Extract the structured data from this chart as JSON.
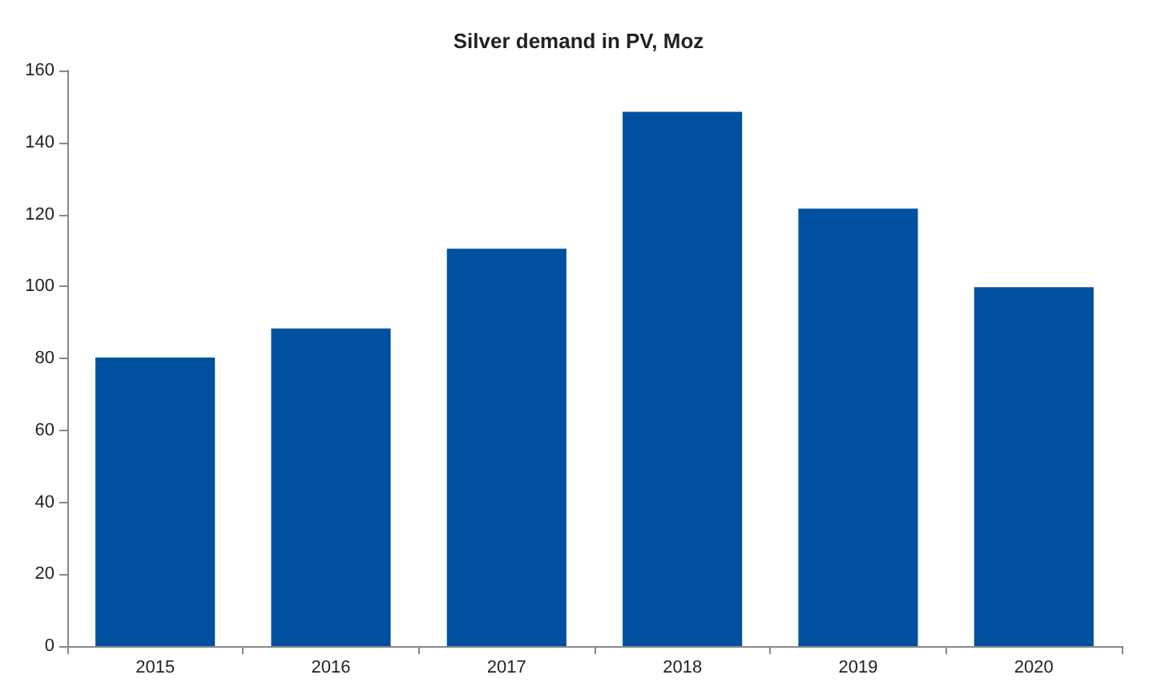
{
  "chart_data": {
    "type": "bar",
    "title": "Silver demand in PV, Moz",
    "categories": [
      "2015",
      "2016",
      "2017",
      "2018",
      "2019",
      "2020"
    ],
    "values": [
      80.2,
      88.3,
      110.5,
      148.5,
      121.6,
      99.8
    ],
    "color": "#0050a0",
    "ylim": [
      0,
      160
    ],
    "yticks": [
      0,
      20,
      40,
      60,
      80,
      100,
      120,
      140,
      160
    ],
    "grid": false
  }
}
